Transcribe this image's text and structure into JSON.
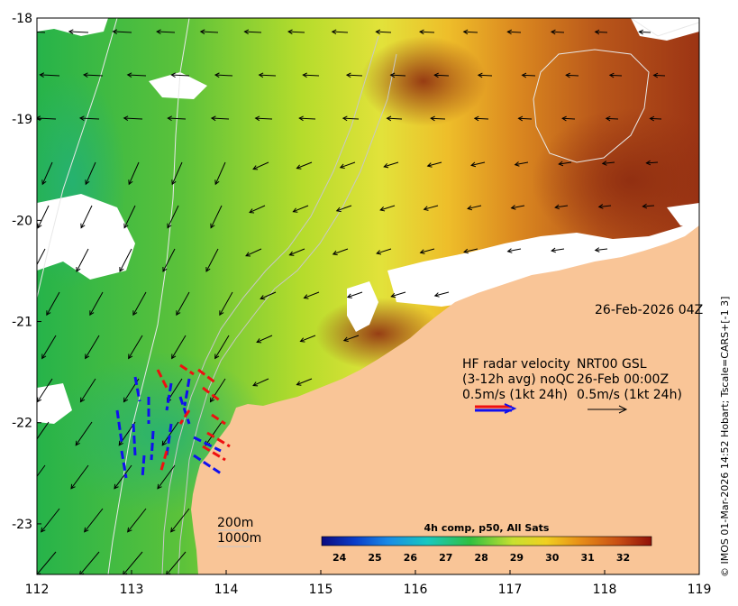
{
  "map": {
    "timestamp": "26-Feb-2026 04Z",
    "credit": "© IMOS 01-Mar-2026 14:52 Hobart; Tscale=CARS+[-1 3]",
    "lon_ticks": [
      "112",
      "113",
      "114",
      "115",
      "116",
      "117",
      "118",
      "119"
    ],
    "lat_ticks": [
      "-18",
      "-19",
      "-20",
      "-21",
      "-22",
      "-23"
    ],
    "lon_range": [
      112,
      119
    ],
    "lat_range": [
      -23.5,
      -18
    ],
    "legend_left": {
      "line1": "HF radar velocity",
      "line2": "(3-12h avg) noQC",
      "line3": "0.5m/s (1kt 24h)"
    },
    "legend_right": {
      "line1": "NRT00 GSL",
      "line2": "26-Feb 00:00Z",
      "line3": "0.5m/s (1kt 24h)"
    },
    "isobath_labels": [
      "200m",
      "1000m"
    ],
    "colorbar": {
      "title": "4h comp, p50, All Sats",
      "labels": [
        "24",
        "25",
        "26",
        "27",
        "28",
        "29",
        "30",
        "31",
        "32"
      ],
      "range": [
        23.5,
        32.8
      ]
    },
    "colors": {
      "land": "#f9c597",
      "cloud": "#ffffff",
      "radar_a": "#1010ee",
      "radar_b": "#ee1010"
    }
  }
}
